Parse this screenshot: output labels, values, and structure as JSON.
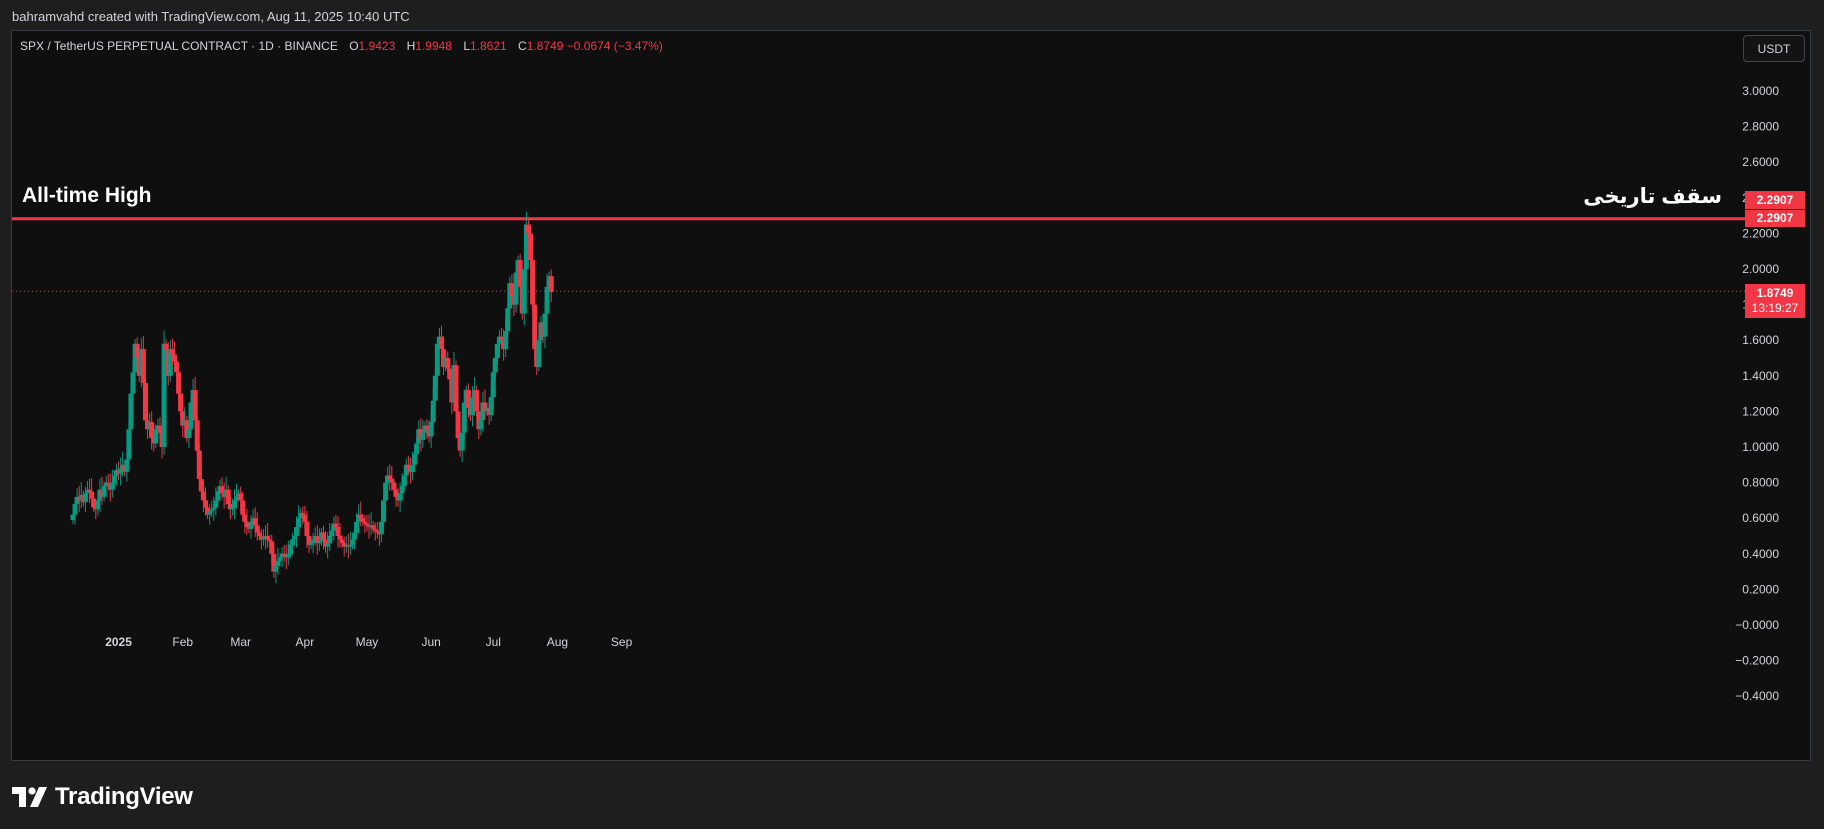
{
  "credit": "bahramvahd created with TradingView.com, Aug 11, 2025 10:40 UTC",
  "legend": {
    "symbol": "SPX / TetherUS PERPETUAL CONTRACT · 1D · BINANCE",
    "open_label": "O",
    "open": "1.9423",
    "high_label": "H",
    "high": "1.9948",
    "low_label": "L",
    "low": "1.8621",
    "close_label": "C",
    "close": "1.8749",
    "change": "−0.0674 (−3.47%)"
  },
  "currency_button": "USDT",
  "annotations": {
    "ath_en": "All-time High",
    "ath_fa": "سقف تاریخی"
  },
  "badges": {
    "ath_1": "2.2907",
    "ath_2": "2.2907",
    "last_price": "1.8749",
    "countdown": "13:19:27"
  },
  "brand": "TradingView",
  "colors": {
    "up": "#089981",
    "down": "#f23645",
    "ath_line": "#f23645",
    "background": "#0f0f0f",
    "text": "#d1d4dc"
  },
  "chart_data": {
    "type": "candlestick",
    "symbol": "SPX / TetherUS PERPETUAL CONTRACT",
    "interval": "1D",
    "ylim": [
      -0.5,
      3.15
    ],
    "y_ticks": [
      "3.0000",
      "2.8000",
      "2.6000",
      "2.4000",
      "2.2000",
      "2.0000",
      "1.8000",
      "1.6000",
      "1.4000",
      "1.2000",
      "1.0000",
      "0.8000",
      "0.6000",
      "0.4000",
      "0.2000",
      "−0.0000",
      "−0.2000",
      "−0.4000"
    ],
    "x_labels": [
      {
        "label": "2025",
        "date": "2025-01-01",
        "bold": true
      },
      {
        "label": "Feb",
        "date": "2025-02-01",
        "bold": false
      },
      {
        "label": "Mar",
        "date": "2025-03-01",
        "bold": false
      },
      {
        "label": "Apr",
        "date": "2025-04-01",
        "bold": false
      },
      {
        "label": "May",
        "date": "2025-05-01",
        "bold": false
      },
      {
        "label": "Jun",
        "date": "2025-06-01",
        "bold": false
      },
      {
        "label": "Jul",
        "date": "2025-07-01",
        "bold": false
      },
      {
        "label": "Aug",
        "date": "2025-08-01",
        "bold": false
      },
      {
        "label": "Sep",
        "date": "2025-09-01",
        "bold": false
      }
    ],
    "first_date": "2024-12-10",
    "closes": [
      0.62,
      0.68,
      0.72,
      0.7,
      0.73,
      0.69,
      0.74,
      0.76,
      0.75,
      0.71,
      0.66,
      0.65,
      0.7,
      0.76,
      0.72,
      0.78,
      0.8,
      0.79,
      0.76,
      0.8,
      0.84,
      0.87,
      0.85,
      0.88,
      0.9,
      0.86,
      0.93,
      1.1,
      1.3,
      1.42,
      1.58,
      1.5,
      1.4,
      1.55,
      1.36,
      1.15,
      1.1,
      1.14,
      1.05,
      1.02,
      1.1,
      1.12,
      1.08,
      1.0,
      1.58,
      1.55,
      1.4,
      1.55,
      1.52,
      1.48,
      1.42,
      1.3,
      1.2,
      1.12,
      1.15,
      1.05,
      1.1,
      1.25,
      1.32,
      1.15,
      0.98,
      0.82,
      0.75,
      0.7,
      0.66,
      0.62,
      0.64,
      0.65,
      0.66,
      0.7,
      0.75,
      0.78,
      0.74,
      0.72,
      0.76,
      0.68,
      0.65,
      0.66,
      0.7,
      0.72,
      0.74,
      0.7,
      0.62,
      0.58,
      0.55,
      0.54,
      0.58,
      0.6,
      0.56,
      0.52,
      0.5,
      0.48,
      0.49,
      0.5,
      0.48,
      0.47,
      0.4,
      0.3,
      0.33,
      0.36,
      0.38,
      0.4,
      0.39,
      0.38,
      0.4,
      0.45,
      0.48,
      0.5,
      0.55,
      0.6,
      0.63,
      0.62,
      0.58,
      0.5,
      0.45,
      0.46,
      0.48,
      0.5,
      0.46,
      0.47,
      0.52,
      0.48,
      0.44,
      0.46,
      0.5,
      0.53,
      0.57,
      0.55,
      0.5,
      0.48,
      0.46,
      0.44,
      0.45,
      0.44,
      0.45,
      0.48,
      0.52,
      0.58,
      0.62,
      0.6,
      0.58,
      0.57,
      0.56,
      0.55,
      0.56,
      0.54,
      0.53,
      0.52,
      0.51,
      0.58,
      0.7,
      0.8,
      0.84,
      0.82,
      0.8,
      0.76,
      0.72,
      0.7,
      0.74,
      0.78,
      0.84,
      0.9,
      0.88,
      0.86,
      0.9,
      0.96,
      1.02,
      1.1,
      1.04,
      1.08,
      1.12,
      1.1,
      1.06,
      1.14,
      1.26,
      1.4,
      1.58,
      1.62,
      1.55,
      1.45,
      1.5,
      1.44,
      1.38,
      1.25,
      1.46,
      1.2,
      1.05,
      0.98,
      1.08,
      1.25,
      1.32,
      1.22,
      1.18,
      1.28,
      1.32,
      1.2,
      1.1,
      1.15,
      1.25,
      1.2,
      1.22,
      1.18,
      1.28,
      1.42,
      1.5,
      1.58,
      1.62,
      1.6,
      1.55,
      1.65,
      1.78,
      1.92,
      1.85,
      1.8,
      1.98,
      2.05,
      1.9,
      1.75,
      2.0,
      2.25,
      2.2,
      2.05,
      1.8,
      1.55,
      1.45,
      1.6,
      1.7,
      1.62,
      1.75,
      1.9,
      1.96,
      1.87
    ]
  }
}
